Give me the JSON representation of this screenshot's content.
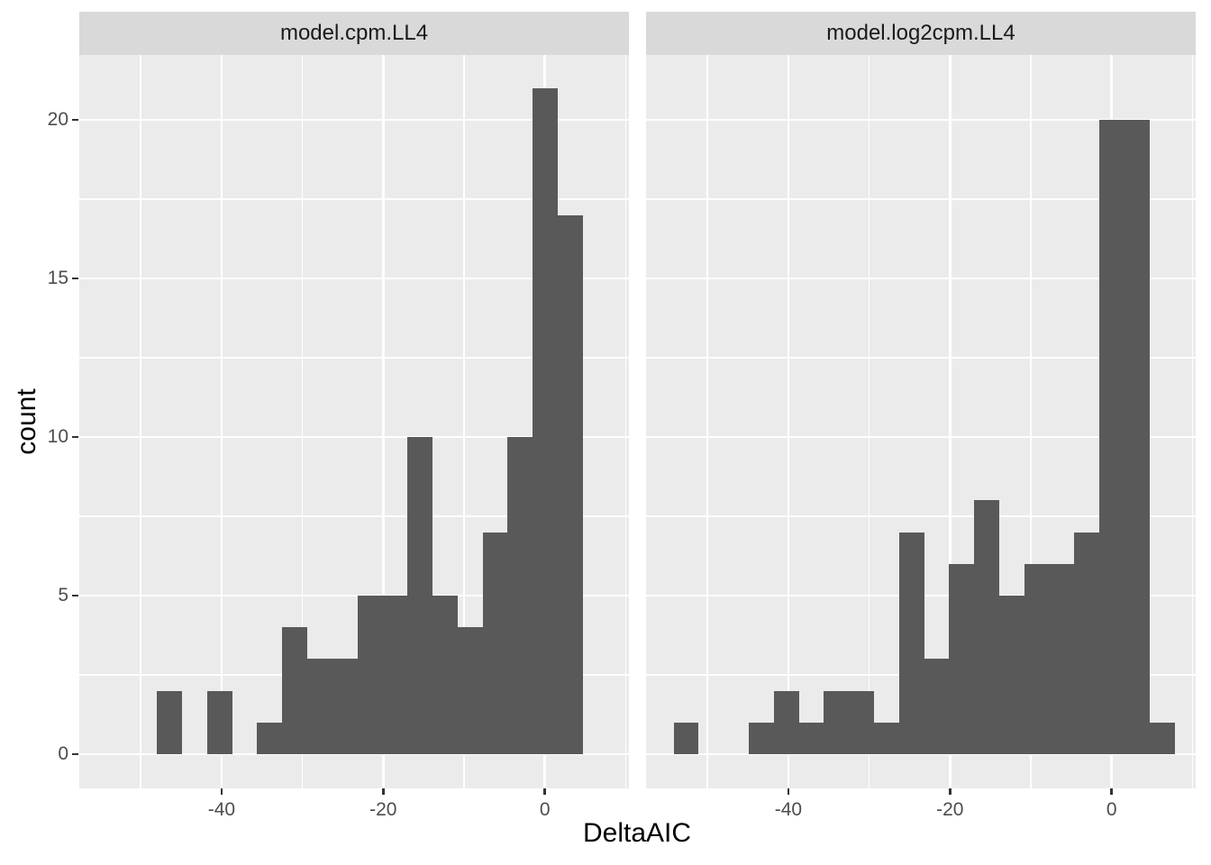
{
  "chart_data": {
    "type": "bar",
    "subtype": "faceted-histogram",
    "xlabel": "DeltaAIC",
    "ylabel": "count",
    "binwidth": 3.1,
    "x_ticks": [
      -40,
      -20,
      0
    ],
    "x_tick_labels": [
      "-40",
      "-20",
      "0"
    ],
    "x_minor_ticks": [
      -50,
      -30,
      -10,
      10
    ],
    "y_ticks": [
      0,
      5,
      10,
      15,
      20
    ],
    "y_tick_labels": [
      "0",
      "5",
      "10",
      "15",
      "20"
    ],
    "y_minor_ticks": [
      2.5,
      7.5,
      12.5,
      17.5
    ],
    "xlim": [
      -57.6,
      10.4
    ],
    "ylim": [
      -1.08,
      22.05
    ],
    "grid": "on",
    "legend": "none",
    "facets": [
      {
        "label": "model.cpm.LL4",
        "bin_start": -48.0,
        "counts": [
          2,
          0,
          2,
          0,
          1,
          4,
          3,
          3,
          5,
          5,
          10,
          5,
          4,
          7,
          10,
          21,
          17
        ]
      },
      {
        "label": "model.log2cpm.LL4",
        "bin_start": -54.2,
        "counts": [
          1,
          0,
          0,
          1,
          2,
          1,
          2,
          2,
          1,
          7,
          3,
          6,
          8,
          5,
          6,
          6,
          7,
          20,
          20,
          1
        ]
      }
    ],
    "colors": {
      "bar": "#595959",
      "panel_background": "#ebebeb",
      "strip_background": "#d9d9d9",
      "gridline": "#ffffff",
      "tick_mark": "#333333",
      "axis_text": "#4d4d4d",
      "axis_title_text": "#000000",
      "strip_text": "#1a1a1a"
    }
  }
}
